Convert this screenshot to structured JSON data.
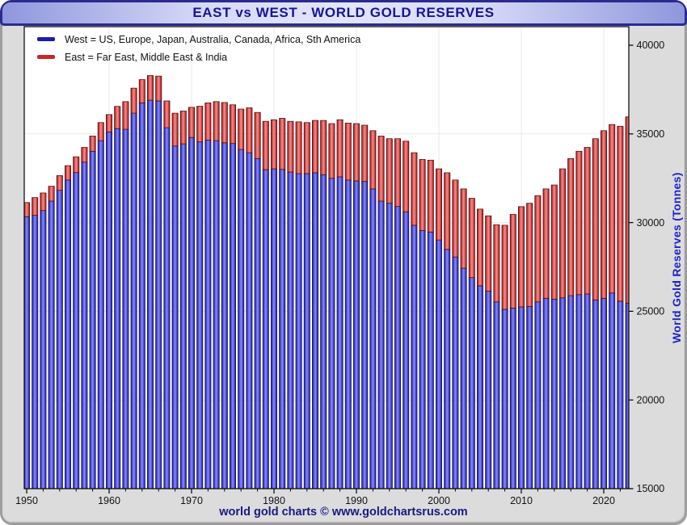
{
  "window": {
    "title": "EAST vs WEST - WORLD GOLD RESERVES"
  },
  "legend": {
    "west_label": "West = US, Europe, Japan, Australia, Canada, Africa, Sth America",
    "east_label": "East = Far East, Middle East & India"
  },
  "caption": "world gold charts © www.goldchartsrus.com",
  "colors": {
    "panel_background": "#dcdcdc",
    "titlebar_border": "#2b2b8f",
    "title_text": "#15159a",
    "axis_title_text": "#2121cc",
    "caption_text": "#191980",
    "plot_background": "#ffffff",
    "gridline": "#e9e9e9"
  },
  "chart_data": {
    "type": "bar",
    "stacked": true,
    "title": "EAST vs WEST - WORLD GOLD RESERVES",
    "xlabel": "",
    "ylabel": "World Gold Reserves (Tonnes)",
    "ylim": [
      15000,
      40000
    ],
    "yticks": [
      15000,
      20000,
      25000,
      30000,
      35000,
      40000
    ],
    "xticks": [
      1950,
      1960,
      1970,
      1980,
      1990,
      2000,
      2010,
      2020
    ],
    "grid": true,
    "legend_position": "top-left",
    "categories": [
      1950,
      1951,
      1952,
      1953,
      1954,
      1955,
      1956,
      1957,
      1958,
      1959,
      1960,
      1961,
      1962,
      1963,
      1964,
      1965,
      1966,
      1967,
      1968,
      1969,
      1970,
      1971,
      1972,
      1973,
      1974,
      1975,
      1976,
      1977,
      1978,
      1979,
      1980,
      1981,
      1982,
      1983,
      1984,
      1985,
      1986,
      1987,
      1988,
      1989,
      1990,
      1991,
      1992,
      1993,
      1994,
      1995,
      1996,
      1997,
      1998,
      1999,
      2000,
      2001,
      2002,
      2003,
      2004,
      2005,
      2006,
      2007,
      2008,
      2009,
      2010,
      2011,
      2012,
      2013,
      2014,
      2015,
      2016,
      2017,
      2018,
      2019,
      2020,
      2021,
      2022,
      2023
    ],
    "series": [
      {
        "name": "West",
        "legend_color": "#1c1cb0",
        "fill_mid": "#8c8cf4",
        "fill_main": "#4a4ad4",
        "fill_edge": "#1c1c96",
        "stroke": "#14145e",
        "values": [
          30330,
          30410,
          30680,
          31210,
          31820,
          32400,
          32820,
          33410,
          34020,
          34620,
          35110,
          35300,
          35260,
          36170,
          36750,
          36900,
          36860,
          35350,
          34320,
          34440,
          34800,
          34550,
          34650,
          34620,
          34500,
          34460,
          34120,
          33940,
          33610,
          32990,
          33030,
          33000,
          32850,
          32760,
          32760,
          32810,
          32700,
          32500,
          32580,
          32400,
          32350,
          32320,
          31900,
          31210,
          31090,
          30910,
          30610,
          29850,
          29550,
          29470,
          29020,
          28490,
          28060,
          27430,
          26900,
          26440,
          26140,
          25530,
          25110,
          25180,
          25250,
          25270,
          25530,
          25730,
          25680,
          25760,
          25880,
          25940,
          25980,
          25640,
          25730,
          26030,
          25570,
          25450
        ]
      },
      {
        "name": "East",
        "legend_color": "#c62828",
        "fill_mid": "#f09090",
        "fill_main": "#d44a4a",
        "fill_edge": "#8e1616",
        "stroke": "#5c0e0e",
        "values": [
          800,
          1000,
          990,
          840,
          830,
          810,
          890,
          830,
          860,
          1020,
          980,
          1250,
          1560,
          1410,
          1310,
          1390,
          1400,
          1510,
          1850,
          1850,
          1700,
          2010,
          2100,
          2200,
          2270,
          2180,
          2280,
          2530,
          2600,
          2720,
          2770,
          2880,
          2860,
          2920,
          2880,
          2950,
          3060,
          3080,
          3220,
          3210,
          3230,
          3170,
          3280,
          3670,
          3640,
          3820,
          3980,
          4090,
          4010,
          4050,
          4010,
          4320,
          4340,
          4470,
          4470,
          4320,
          4240,
          4350,
          4740,
          5280,
          5650,
          5820,
          5990,
          6170,
          6440,
          7270,
          7730,
          8080,
          8260,
          9090,
          9450,
          9500,
          9860,
          10510
        ]
      }
    ]
  }
}
